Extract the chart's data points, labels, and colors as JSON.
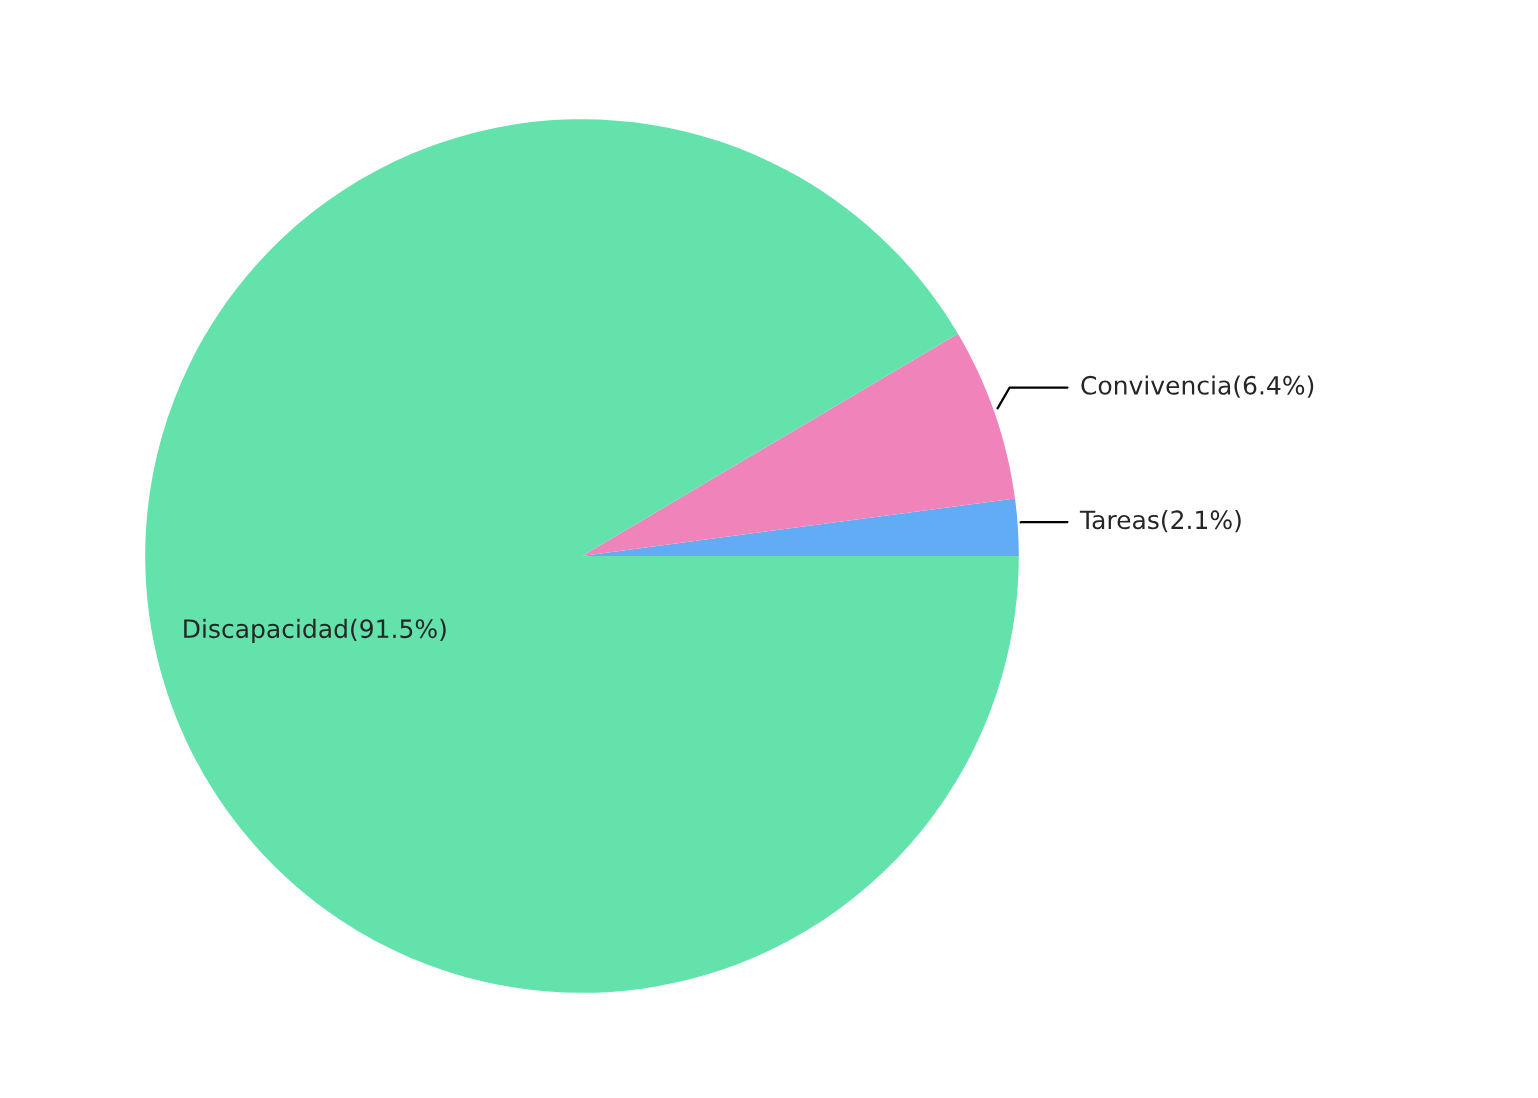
{
  "chart_data": {
    "type": "pie",
    "categories": [
      "Tareas",
      "Convivencia",
      "Discapacidad"
    ],
    "values": [
      2.1,
      6.4,
      91.5
    ],
    "value_labels": [
      "(2.1%)",
      "(6.4%)",
      "(91.5%)"
    ],
    "colors": [
      "#62acf5",
      "#f183bb",
      "#63e3ab"
    ]
  }
}
